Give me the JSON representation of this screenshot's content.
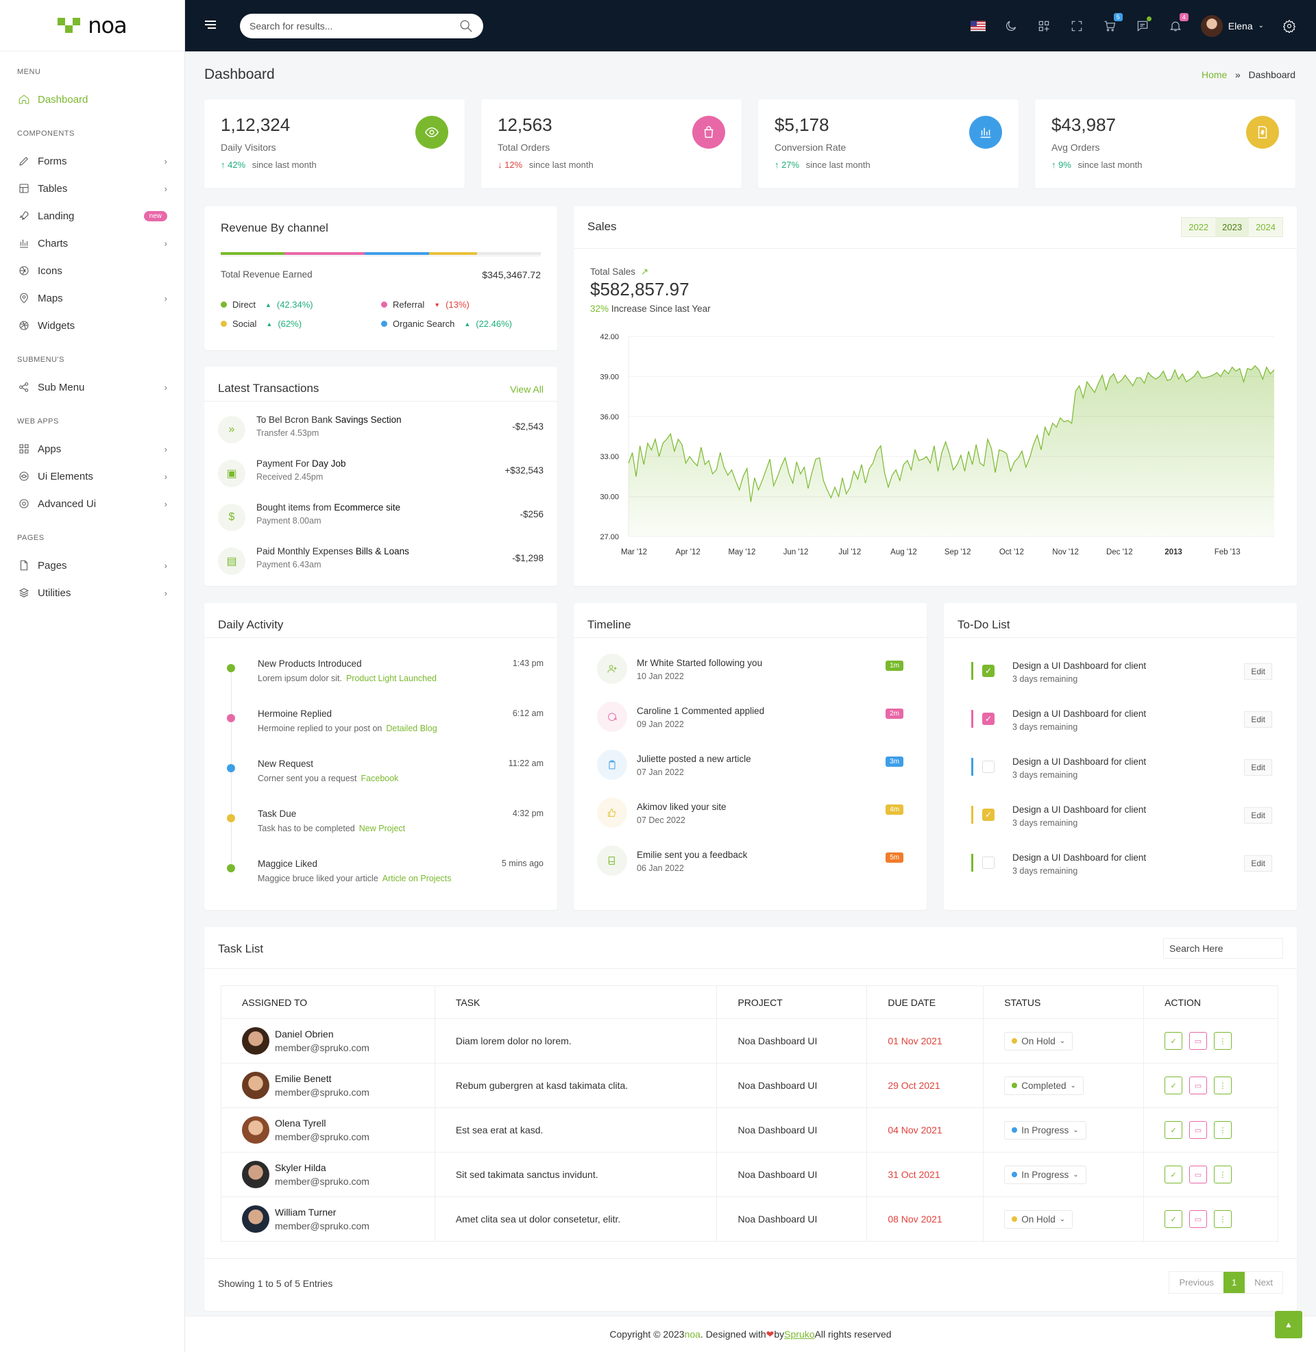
{
  "brand": {
    "name": "noa"
  },
  "search": {
    "placeholder": "Search for results..."
  },
  "topbar": {
    "user_name": "Elena",
    "cart_count": "5",
    "notify_count": "4"
  },
  "sidebar": {
    "sections": [
      {
        "title": "MENU",
        "items": [
          {
            "label": "Dashboard",
            "icon": "home-icon",
            "active": true
          }
        ]
      },
      {
        "title": "COMPONENTS",
        "items": [
          {
            "label": "Forms",
            "icon": "edit-icon",
            "chevron": true
          },
          {
            "label": "Tables",
            "icon": "table-icon",
            "chevron": true
          },
          {
            "label": "Landing",
            "icon": "rocket-icon",
            "badge": "new"
          },
          {
            "label": "Charts",
            "icon": "bar-chart-icon",
            "chevron": true
          },
          {
            "label": "Icons",
            "icon": "aperture-icon"
          },
          {
            "label": "Maps",
            "icon": "map-pin-icon",
            "chevron": true
          },
          {
            "label": "Widgets",
            "icon": "dribbble-icon"
          }
        ]
      },
      {
        "title": "SUBMENU'S",
        "items": [
          {
            "label": "Sub Menu",
            "icon": "share-icon",
            "chevron": true
          }
        ]
      },
      {
        "title": "WEB APPS",
        "items": [
          {
            "label": "Apps",
            "icon": "grid-icon",
            "chevron": true
          },
          {
            "label": "Ui Elements",
            "icon": "layers-circle-icon",
            "chevron": true
          },
          {
            "label": "Advanced Ui",
            "icon": "settings-icon",
            "chevron": true
          }
        ]
      },
      {
        "title": "PAGES",
        "items": [
          {
            "label": "Pages",
            "icon": "file-icon",
            "chevron": true
          },
          {
            "label": "Utilities",
            "icon": "layers-icon",
            "chevron": true
          }
        ]
      }
    ]
  },
  "page": {
    "title": "Dashboard",
    "breadcrumb_home": "Home",
    "breadcrumb_sep": "»",
    "breadcrumb_current": "Dashboard"
  },
  "stats": [
    {
      "value": "1,12,324",
      "label": "Daily Visitors",
      "change": "42%",
      "dir": "up",
      "since": "since last month",
      "color": "#7ab92e",
      "icon": "eye-icon"
    },
    {
      "value": "12,563",
      "label": "Total Orders",
      "change": "12%",
      "dir": "down",
      "since": "since last month",
      "color": "#e868a7",
      "icon": "shopping-bag-icon"
    },
    {
      "value": "$5,178",
      "label": "Conversion Rate",
      "change": "27%",
      "dir": "up",
      "since": "since last month",
      "color": "#3d9ee8",
      "icon": "bar-chart-icon"
    },
    {
      "value": "$43,987",
      "label": "Avg Orders",
      "change": "9%",
      "dir": "up",
      "since": "since last month",
      "color": "#e8c03a",
      "icon": "dollar-doc-icon"
    }
  ],
  "revenue": {
    "title": "Revenue By channel",
    "total_label": "Total Revenue Earned",
    "total_value": "$345,3467.72",
    "channels": [
      {
        "name": "Direct",
        "pct": "(42.34%)",
        "dir": "up",
        "color": "#7ab92e",
        "share": 0.2
      },
      {
        "name": "Referral",
        "pct": "(13%)",
        "dir": "down",
        "color": "#e868a7",
        "share": 0.25
      },
      {
        "name": "Social",
        "pct": "(62%)",
        "dir": "up",
        "color": "#e8c03a",
        "share": 0.15
      },
      {
        "name": "Organic Search",
        "pct": "(22.46%)",
        "dir": "up",
        "color": "#3d9ee8",
        "share": 0.2
      }
    ]
  },
  "transactions": {
    "title": "Latest Transactions",
    "view_all": "View All",
    "items": [
      {
        "text": "To Bel Bcron Bank",
        "bold": "Savings Section",
        "sub": "Transfer 4.53pm",
        "amount": "-$2,543",
        "icon": "double-chevron-icon"
      },
      {
        "text": "Payment For ",
        "bold": "Day Job",
        "sub": "Received 2.45pm",
        "amount": "+$32,543",
        "icon": "briefcase-icon"
      },
      {
        "text": "Bought items from",
        "bold": "Ecommerce site",
        "sub": "Payment 8.00am",
        "amount": "-$256",
        "icon": "dollar-icon"
      },
      {
        "text": "Paid Monthly Expenses",
        "bold": "Bills & Loans",
        "sub": "Payment 6.43am",
        "amount": "-$1,298",
        "icon": "document-icon"
      }
    ]
  },
  "sales": {
    "title": "Sales",
    "years": [
      "2022",
      "2023",
      "2024"
    ],
    "selected_year": "2023",
    "total_label": "Total Sales",
    "total_value": "$582,857.97",
    "increase_pct": "32%",
    "increase_text": "Increase Since last Year"
  },
  "chart_data": {
    "type": "area",
    "title": "",
    "xlabel": "",
    "ylabel": "",
    "ylim": [
      27,
      42
    ],
    "yticks": [
      "42.00",
      "39.00",
      "36.00",
      "33.00",
      "30.00",
      "27.00"
    ],
    "xticks": [
      "Mar '12",
      "Apr '12",
      "May '12",
      "Jun '12",
      "Jul '12",
      "Aug '12",
      "Sep '12",
      "Oct '12",
      "Nov '12",
      "Dec '12",
      "2013",
      "Feb '13"
    ],
    "color": "#7ab92e",
    "series": [
      {
        "values": [
          32.5,
          33.3,
          31.5,
          33.8,
          32.4,
          34.0,
          33.5,
          34.3,
          33.0,
          34.0,
          34.3,
          34.7,
          33.4,
          34.3,
          33.9,
          32.5,
          33.0,
          32.6,
          32.3,
          33.7,
          32.4,
          32.7,
          31.7,
          32.0,
          33.3,
          32.2,
          31.6,
          32.0,
          31.2,
          30.5,
          31.5,
          32.1,
          29.6,
          31.4,
          30.5,
          31.2,
          32.0,
          32.8,
          30.8,
          31.5,
          32.3,
          32.9,
          31.7,
          31.0,
          32.6,
          31.7,
          32.2,
          30.6,
          31.8,
          32.8,
          32.9,
          31.2,
          30.5,
          29.9,
          30.7,
          30.0,
          31.4,
          30.2,
          30.7,
          31.9,
          31.3,
          32.4,
          31.0,
          32.1,
          32.5,
          33.4,
          33.8,
          31.8,
          30.7,
          31.6,
          32.0,
          31.2,
          32.4,
          32.7,
          32.0,
          33.5,
          32.7,
          32.8,
          33.0,
          32.5,
          33.8,
          31.9,
          33.3,
          34.1,
          33.2,
          32.0,
          32.4,
          33.1,
          31.9,
          33.4,
          32.4,
          33.9,
          32.5,
          32.3,
          34.3,
          33.6,
          31.8,
          33.5,
          33.4,
          33.2,
          31.9,
          32.6,
          32.9,
          33.4,
          32.2,
          32.9,
          33.9,
          34.6,
          33.5,
          35.2,
          34.6,
          35.5,
          35.2,
          35.9,
          35.6,
          35.7,
          35.5,
          37.9,
          38.3,
          37.4,
          38.6,
          38.2,
          37.8,
          38.5,
          39.1,
          38.0,
          38.9,
          39.2,
          38.5,
          38.7,
          39.1,
          38.7,
          38.3,
          38.9,
          38.9,
          38.5,
          39.3,
          39.0,
          38.8,
          39.0,
          39.4,
          38.7,
          38.8,
          39.5,
          38.8,
          39.2,
          38.6,
          38.8,
          39.0,
          39.4,
          38.9,
          38.9,
          39.0,
          39.1,
          39.3,
          39.0,
          39.5,
          39.2,
          39.7,
          39.4,
          39.6,
          38.6,
          39.6,
          39.5,
          39.8,
          39.5,
          38.8,
          39.7,
          39.2,
          39.5
        ]
      }
    ]
  },
  "daily_activity": {
    "title": "Daily Activity",
    "items": [
      {
        "title": "New Products Introduced",
        "sub": "Lorem ipsum dolor sit.",
        "link": "Product Light Launched",
        "time": "1:43 pm",
        "color": "#7ab92e"
      },
      {
        "title": "Hermoine Replied",
        "sub": "Hermoine replied to your post on",
        "link": "Detailed Blog",
        "time": "6:12 am",
        "color": "#e868a7"
      },
      {
        "title": "New Request",
        "sub": "Corner sent you a request",
        "link": "Facebook",
        "time": "11:22 am",
        "color": "#3d9ee8"
      },
      {
        "title": "Task Due",
        "sub": "Task has to be completed",
        "link": "New Project",
        "time": "4:32 pm",
        "color": "#e8c03a"
      },
      {
        "title": "Maggice Liked",
        "sub": "Maggice bruce liked your article",
        "link": "Article on Projects",
        "time": "5 mins ago",
        "color": "#7ab92e"
      }
    ]
  },
  "timeline": {
    "title": "Timeline",
    "items": [
      {
        "text": "Mr White Started following you",
        "date": "10 Jan 2022",
        "badge": "1m",
        "color": "#7ab92e",
        "bg": "#f3f6ee",
        "icon": "user-plus-icon"
      },
      {
        "text": "Caroline 1 Commented applied",
        "date": "09 Jan 2022",
        "badge": "2m",
        "color": "#e868a7",
        "bg": "#fcf0f5",
        "icon": "message-circle-icon"
      },
      {
        "text": "Juliette posted a new article",
        "date": "07 Jan 2022",
        "badge": "3m",
        "color": "#3d9ee8",
        "bg": "#edf5fc",
        "icon": "clipboard-icon"
      },
      {
        "text": "Akimov liked your site",
        "date": "07 Dec 2022",
        "badge": "4m",
        "color": "#e8c03a",
        "bg": "#fcf7ea",
        "icon": "thumbs-up-icon"
      },
      {
        "text": "Emilie sent you a feedback",
        "date": "06 Jan 2022",
        "badge": "5m",
        "color": "#f07c2a",
        "bg": "#f3f6ee",
        "icon": "book-icon"
      }
    ]
  },
  "todo": {
    "title": "To-Do List",
    "edit_label": "Edit",
    "items": [
      {
        "text": "Design a UI Dashboard for client",
        "sub": "3 days remaining",
        "checked": true,
        "color": "#7ab92e"
      },
      {
        "text": "Design a UI Dashboard for client",
        "sub": "3 days remaining",
        "checked": true,
        "color": "#e868a7"
      },
      {
        "text": "Design a UI Dashboard for client",
        "sub": "3 days remaining",
        "checked": false,
        "color": "#3d9ee8"
      },
      {
        "text": "Design a UI Dashboard for client",
        "sub": "3 days remaining",
        "checked": true,
        "color": "#e8c03a"
      },
      {
        "text": "Design a UI Dashboard for client",
        "sub": "3 days remaining",
        "checked": false,
        "color": "#7ab92e"
      }
    ]
  },
  "tasks": {
    "title": "Task List",
    "search_placeholder": "Search Here",
    "columns": [
      "ASSIGNED TO",
      "TASK",
      "PROJECT",
      "DUE DATE",
      "STATUS",
      "ACTION"
    ],
    "rows": [
      {
        "name": "Daniel Obrien",
        "email": "member@spruko.com",
        "task": "Diam lorem dolor no lorem.",
        "project": "Noa Dashboard UI",
        "due": "01 Nov 2021",
        "status": "On Hold",
        "status_color": "#e8c03a"
      },
      {
        "name": "Emilie Benett",
        "email": "member@spruko.com",
        "task": "Rebum gubergren at kasd takimata clita.",
        "project": "Noa Dashboard UI",
        "due": "29 Oct 2021",
        "status": "Completed",
        "status_color": "#7ab92e"
      },
      {
        "name": "Olena Tyrell",
        "email": "member@spruko.com",
        "task": "Est sea erat at kasd.",
        "project": "Noa Dashboard UI",
        "due": "04 Nov 2021",
        "status": "In Progress",
        "status_color": "#3d9ee8"
      },
      {
        "name": "Skyler Hilda",
        "email": "member@spruko.com",
        "task": "Sit sed takimata sanctus invidunt.",
        "project": "Noa Dashboard UI",
        "due": "31 Oct 2021",
        "status": "In Progress",
        "status_color": "#3d9ee8"
      },
      {
        "name": "William Turner",
        "email": "member@spruko.com",
        "task": "Amet clita sea ut dolor consetetur, elitr.",
        "project": "Noa Dashboard UI",
        "due": "08 Nov 2021",
        "status": "On Hold",
        "status_color": "#e8c03a"
      }
    ],
    "showing": "Showing 1 to 5 of 5 Entries",
    "pager": {
      "prev": "Previous",
      "current": "1",
      "next": "Next"
    }
  },
  "footer": {
    "pre": "Copyright © 2023 ",
    "brand": "noa",
    "mid": ". Designed with ",
    "by": " by ",
    "company": "Spruko",
    "post": " All rights reserved"
  }
}
